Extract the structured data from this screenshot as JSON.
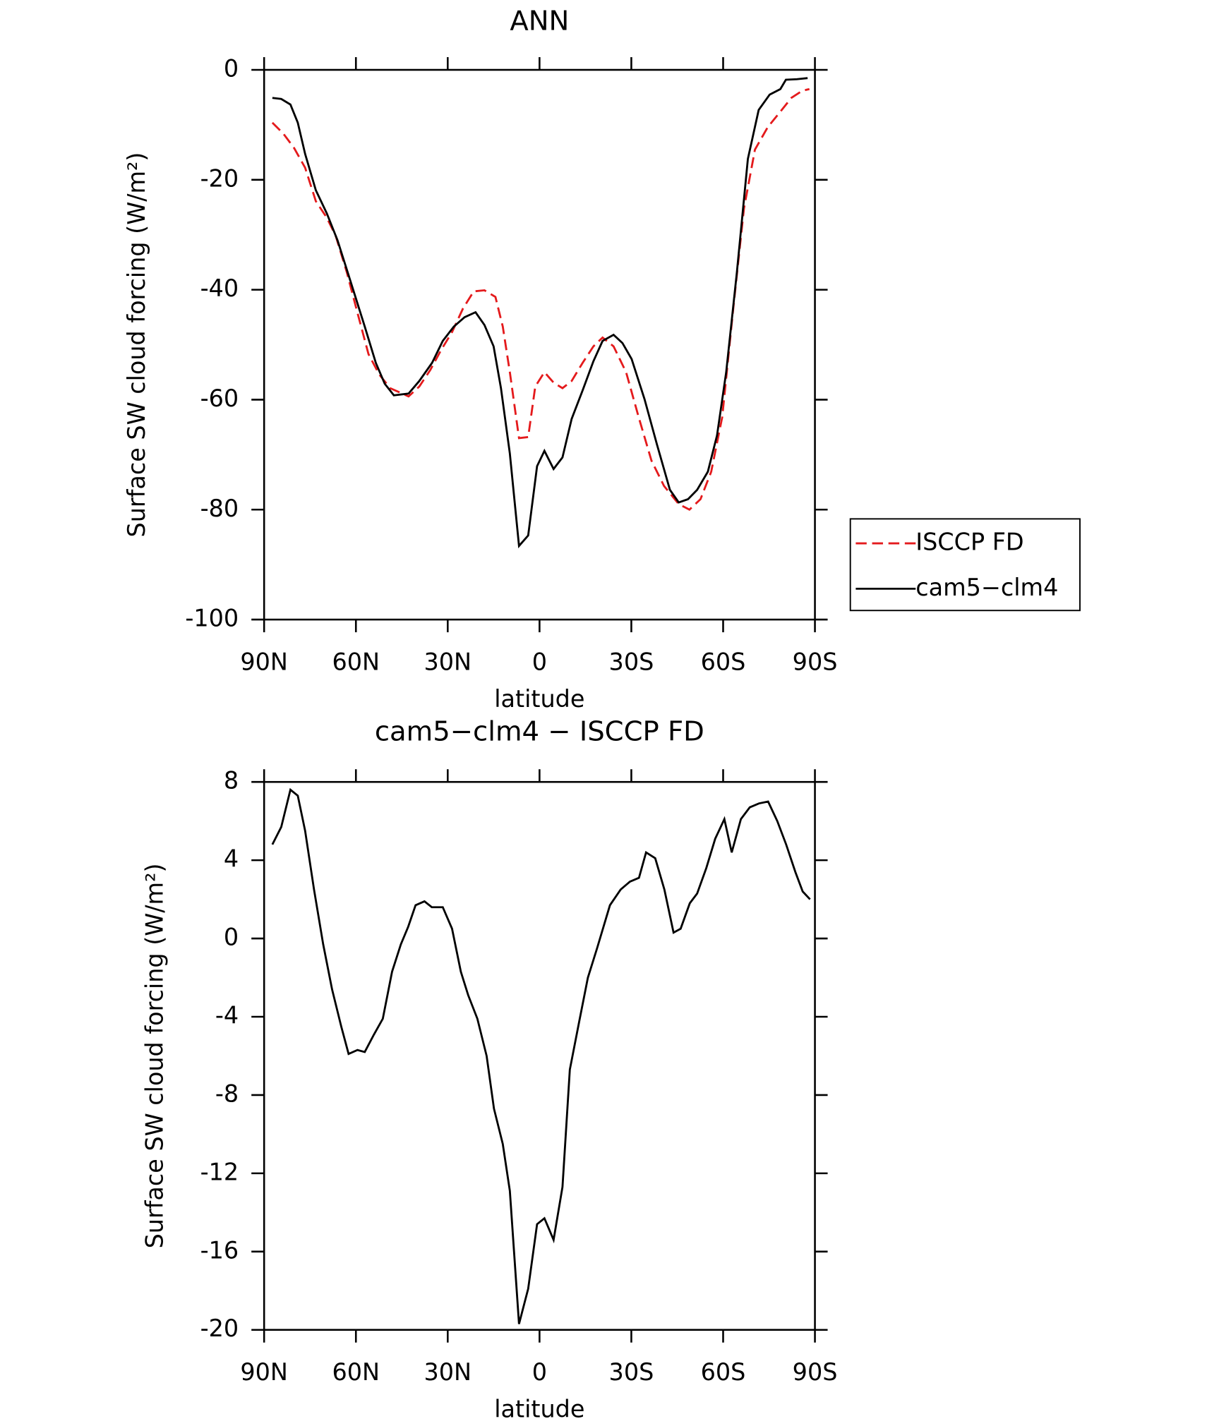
{
  "chart_data": [
    {
      "type": "line",
      "title": "ANN",
      "x_label": "latitude",
      "y_label": "Surface SW cloud forcing (W/m²)",
      "xlim": [
        90,
        -90
      ],
      "xticks": [
        {
          "value": 90,
          "label": "90N"
        },
        {
          "value": 60,
          "label": "60N"
        },
        {
          "value": 30,
          "label": "30N"
        },
        0,
        {
          "value": -30,
          "label": "30S"
        },
        {
          "value": -60,
          "label": "60S"
        },
        {
          "value": -90,
          "label": "90S"
        }
      ],
      "ylim": [
        -100,
        0
      ],
      "yticks": [
        -100,
        -80,
        -60,
        -40,
        -20,
        0
      ],
      "series": [
        {
          "name": "ISCCP FD",
          "color": "#e41a1c",
          "linestyle": "dashed",
          "x": [
            87.3,
            83.7,
            80.2,
            76.6,
            73.1,
            69.5,
            66.6,
            63,
            59.5,
            55.9,
            52.4,
            48.8,
            42.8,
            39.3,
            35.7,
            32.2,
            28.6,
            25,
            21.5,
            18,
            14.4,
            12,
            9.7,
            6.7,
            3.7,
            1.4,
            -1.6,
            -4.6,
            -7.5,
            -10.5,
            -14.1,
            -17.6,
            -20.6,
            -24.2,
            -28.3,
            -32.4,
            -36.6,
            -40.7,
            -45.5,
            -49,
            -52.6,
            -56.1,
            -59.7,
            -63.3,
            -66.8,
            -70.4,
            -74.6,
            -78.7,
            -82.3,
            -85.9,
            -88.2
          ],
          "values": [
            -9.6,
            -11.6,
            -14.2,
            -17.8,
            -23.9,
            -26.9,
            -30.2,
            -36.8,
            -44.2,
            -51.7,
            -55.4,
            -57.9,
            -59.4,
            -57.6,
            -54.6,
            -51,
            -47.7,
            -43.4,
            -40.3,
            -40.1,
            -41.3,
            -46.7,
            -55,
            -67,
            -66.8,
            -57.6,
            -55,
            -56.9,
            -57.9,
            -56.6,
            -53.3,
            -50.3,
            -48.7,
            -50.3,
            -55,
            -63.2,
            -71.1,
            -75.7,
            -79,
            -80,
            -78.1,
            -73.1,
            -63.2,
            -43.4,
            -25.2,
            -14.5,
            -10.4,
            -7.6,
            -5.1,
            -3.8,
            -3.5
          ]
        },
        {
          "name": "cam5−clm4",
          "color": "#000000",
          "linestyle": "solid",
          "x": [
            87.3,
            84.4,
            81.4,
            79,
            76.6,
            73.1,
            69.5,
            66,
            61.8,
            57.1,
            53.5,
            50.6,
            47.6,
            42.8,
            39.3,
            35.1,
            31.6,
            28,
            24.5,
            20.9,
            18,
            15,
            12.6,
            9.7,
            6.7,
            3.7,
            0.8,
            -1.6,
            -4.6,
            -7.5,
            -10.5,
            -14.1,
            -17.6,
            -20.6,
            -24.2,
            -27.1,
            -30.1,
            -34.3,
            -38.4,
            -42.6,
            -45.5,
            -48.5,
            -51.5,
            -55,
            -58,
            -61,
            -64.5,
            -68.1,
            -71.6,
            -75.2,
            -78.7,
            -80.5,
            -84.1,
            -87.6
          ],
          "values": [
            -5.1,
            -5.3,
            -6.3,
            -9.6,
            -15.3,
            -21.9,
            -26.1,
            -31,
            -38.4,
            -46.7,
            -53.3,
            -57.1,
            -59.2,
            -58.9,
            -56.6,
            -53.3,
            -49.3,
            -46.7,
            -45,
            -44.1,
            -46.4,
            -50.3,
            -57.9,
            -69.8,
            -86.6,
            -84.7,
            -72.1,
            -69.3,
            -72.6,
            -70.5,
            -63.5,
            -58.3,
            -53,
            -49.3,
            -48.2,
            -49.7,
            -52.6,
            -59.9,
            -68.2,
            -76.4,
            -78.7,
            -78.1,
            -76.4,
            -73.1,
            -66.5,
            -55,
            -36.8,
            -16.2,
            -7.3,
            -4.5,
            -3.5,
            -1.8,
            -1.7,
            -1.5
          ]
        }
      ],
      "legend": "outside-right"
    },
    {
      "type": "line",
      "title": "cam5−clm4 − ISCCP FD",
      "x_label": "latitude",
      "y_label": "Surface SW cloud forcing (W/m²)",
      "xlim": [
        90,
        -90
      ],
      "xticks": [
        {
          "value": 90,
          "label": "90N"
        },
        {
          "value": 60,
          "label": "60N"
        },
        {
          "value": 30,
          "label": "30N"
        },
        0,
        {
          "value": -30,
          "label": "30S"
        },
        {
          "value": -60,
          "label": "60S"
        },
        {
          "value": -90,
          "label": "90S"
        }
      ],
      "ylim": [
        -20,
        8
      ],
      "yticks": [
        -20,
        -16,
        -12,
        -8,
        -4,
        0,
        4,
        8
      ],
      "series": [
        {
          "color": "#000000",
          "linestyle": "solid",
          "x": [
            87.3,
            84.4,
            81.4,
            79,
            76.6,
            73.7,
            70.7,
            67.8,
            64.8,
            62.4,
            59.5,
            57.1,
            54.1,
            51.2,
            48.2,
            45.3,
            42.9,
            40.5,
            37.6,
            35.2,
            31.6,
            28.6,
            25.7,
            23.3,
            20.3,
            17.3,
            14.9,
            12,
            9.7,
            6.7,
            3.7,
            0.8,
            -1.6,
            -4.6,
            -7.5,
            -9.9,
            -12.9,
            -15.8,
            -18.8,
            -23,
            -26.5,
            -29.5,
            -32.5,
            -34.8,
            -37.8,
            -40.8,
            -43.8,
            -46.1,
            -49.1,
            -51.5,
            -54.5,
            -57.4,
            -60.4,
            -62.8,
            -65.8,
            -68.7,
            -71.7,
            -74.7,
            -77.7,
            -80.6,
            -83.6,
            -86,
            -88.4
          ],
          "values": [
            4.8,
            5.7,
            7.6,
            7.3,
            5.5,
            2.5,
            -0.3,
            -2.6,
            -4.5,
            -5.9,
            -5.7,
            -5.8,
            -4.9,
            -4.1,
            -1.7,
            -0.3,
            0.6,
            1.7,
            1.9,
            1.6,
            1.6,
            0.5,
            -1.7,
            -2.9,
            -4.1,
            -6,
            -8.7,
            -10.5,
            -12.9,
            -19.7,
            -17.9,
            -14.6,
            -14.3,
            -15.4,
            -12.7,
            -6.7,
            -4.3,
            -2,
            -0.5,
            1.7,
            2.5,
            2.9,
            3.1,
            4.4,
            4.1,
            2.5,
            0.3,
            0.5,
            1.8,
            2.3,
            3.6,
            5.1,
            6.1,
            4.4,
            6.1,
            6.7,
            6.9,
            7,
            6,
            4.8,
            3.4,
            2.4,
            2
          ]
        }
      ]
    }
  ]
}
